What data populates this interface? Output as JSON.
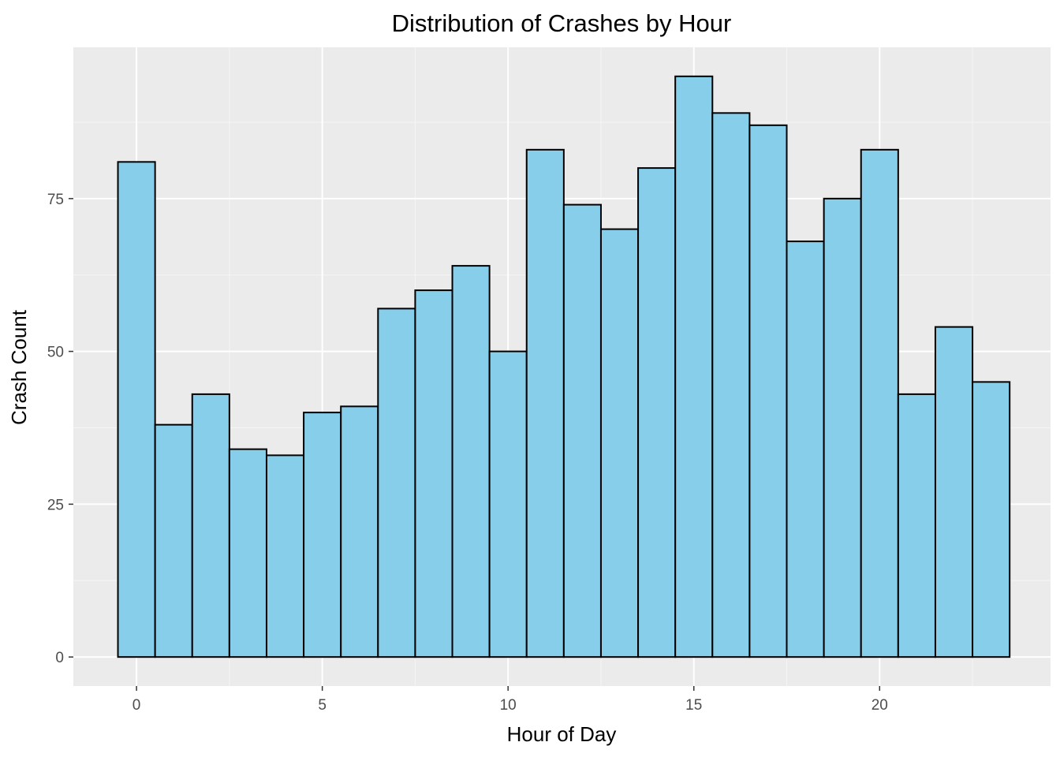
{
  "chart_data": {
    "type": "bar",
    "title": "Distribution of Crashes by Hour",
    "xlabel": "Hour of Day",
    "ylabel": "Crash Count",
    "categories": [
      0,
      1,
      2,
      3,
      4,
      5,
      6,
      7,
      8,
      9,
      10,
      11,
      12,
      13,
      14,
      15,
      16,
      17,
      18,
      19,
      20,
      21,
      22,
      23
    ],
    "values": [
      81,
      38,
      43,
      34,
      33,
      40,
      41,
      57,
      60,
      64,
      50,
      83,
      74,
      70,
      80,
      95,
      89,
      87,
      68,
      75,
      83,
      43,
      54,
      45
    ],
    "xlim": [
      -1.7,
      24.6
    ],
    "ylim": [
      -4.75,
      99.75
    ],
    "x_ticks": [
      0,
      5,
      10,
      15,
      20
    ],
    "x_tick_labels": [
      "0",
      "5",
      "10",
      "15",
      "20"
    ],
    "y_ticks": [
      0,
      25,
      50,
      75
    ],
    "y_tick_labels": [
      "0",
      "25",
      "50",
      "75"
    ],
    "grid": true,
    "legend": "none",
    "colors": {
      "bar_fill": "#87CEEB",
      "bar_stroke": "#000000",
      "panel_background": "#EBEBEB",
      "grid_major": "#FFFFFF",
      "grid_minor": "#F5F5F5",
      "tick_color": "#333333"
    }
  }
}
